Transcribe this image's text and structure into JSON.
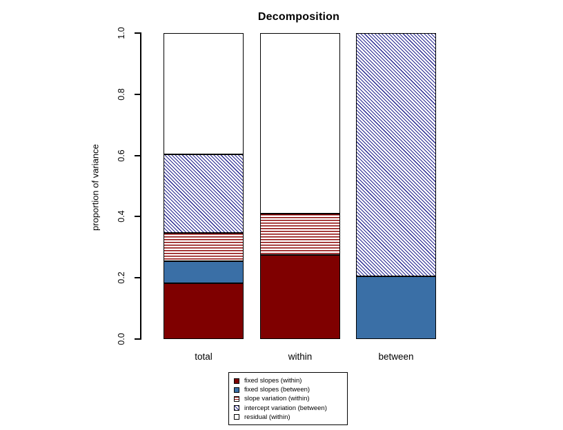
{
  "chart_data": {
    "type": "bar",
    "stacked": true,
    "title": "Decomposition",
    "xlabel": "",
    "ylabel": "proportion of variance",
    "ylim": [
      0.0,
      1.0
    ],
    "ytick_labels": [
      "0.0",
      "0.2",
      "0.4",
      "0.6",
      "0.8",
      "1.0"
    ],
    "yticks": [
      0.0,
      0.2,
      0.4,
      0.6,
      0.8,
      1.0
    ],
    "grid": false,
    "legend_position": "bottom-center",
    "categories": [
      "total",
      "within",
      "between"
    ],
    "series": [
      {
        "name": "fixed slopes (within)",
        "pattern": "solid",
        "color": "#7f0000",
        "values": [
          0.182,
          0.275,
          0.0
        ]
      },
      {
        "name": "fixed slopes (between)",
        "pattern": "solid",
        "color": "#3a6fa6",
        "values": [
          0.072,
          0.0,
          0.205
        ]
      },
      {
        "name": "slope variation (within)",
        "pattern": "hlines",
        "color": "#8b0000",
        "values": [
          0.092,
          0.135,
          0.0
        ]
      },
      {
        "name": "intercept variation (between)",
        "pattern": "diag",
        "color": "#24248f",
        "values": [
          0.257,
          0.0,
          0.795
        ]
      },
      {
        "name": "residual (within)",
        "pattern": "none",
        "color": "#ffffff",
        "values": [
          0.397,
          0.59,
          0.0
        ]
      }
    ],
    "colors": {
      "bar_border": "#000000",
      "axis": "#000000",
      "background": "#ffffff",
      "dark_red": "#7f0000",
      "steel_blue": "#3a6fa6",
      "hatch_red": "#8b0000",
      "hatch_blue": "#24248f"
    }
  }
}
